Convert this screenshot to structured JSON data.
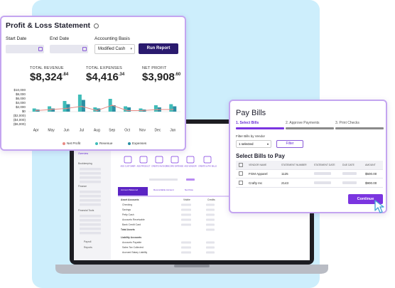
{
  "profit_loss": {
    "title": "Profit & Loss Statement",
    "start_date_label": "Start Date",
    "end_date_label": "End Date",
    "basis_label": "Accounting Basis",
    "basis_value": "Modified Cash",
    "run_button": "Run Report",
    "stats": [
      {
        "label": "TOTAL REVENUE",
        "whole": "$8,324",
        "cents": ".84"
      },
      {
        "label": "TOTAL EXPENSES",
        "whole": "$4,416",
        "cents": ".34"
      },
      {
        "label": "NET PROFIT",
        "whole": "$3,908",
        "cents": ".60"
      }
    ]
  },
  "chart_data": {
    "type": "bar",
    "categories": [
      "Apr",
      "May",
      "Jun",
      "Jul",
      "Aug",
      "Sep",
      "Oct",
      "Nov",
      "Dec",
      "Jan"
    ],
    "series": [
      {
        "name": "Net Profit",
        "type": "line",
        "color": "#e88a84",
        "values": [
          500,
          1000,
          1500,
          2500,
          500,
          3000,
          500,
          500,
          1000,
          1000
        ]
      },
      {
        "name": "Revenue",
        "color": "#3fbcb8",
        "values": [
          1500,
          2500,
          5000,
          8000,
          2000,
          6000,
          2500,
          1500,
          3000,
          3500
        ]
      },
      {
        "name": "Expenses",
        "color": "#2b8fa3",
        "values": [
          1000,
          1500,
          3500,
          5500,
          1500,
          3000,
          2000,
          1000,
          2000,
          2500
        ]
      }
    ],
    "ylim": [
      -6000,
      10000
    ],
    "yticks": [
      {
        "value": 10000,
        "label": "$10,000"
      },
      {
        "value": 8000,
        "label": "$8,000"
      },
      {
        "value": 6000,
        "label": "$6,000"
      },
      {
        "value": 4000,
        "label": "$4,000"
      },
      {
        "value": 2000,
        "label": "$2,000"
      },
      {
        "value": 0,
        "label": "$0"
      },
      {
        "value": -2000,
        "label": "($2,000)"
      },
      {
        "value": -4000,
        "label": "($4,000)"
      },
      {
        "value": -6000,
        "label": "($6,000)"
      }
    ],
    "grid": false
  },
  "pay_bills": {
    "title": "Pay Bills",
    "steps": [
      "1. Select Bills",
      "2. Approve Payments",
      "3. Print Checks"
    ],
    "filter_label": "Filter Bills by Vendor",
    "filter_value": "1 selected",
    "filter_button": "Filter",
    "section_title": "Select Bills to Pay",
    "columns": [
      "VENDOR NAME",
      "STATEMENT NUMBER",
      "STATEMENT DATE",
      "DUE DATE",
      "AMOUNT"
    ],
    "rows": [
      [
        "FGM Apparel",
        "1125",
        "$500.00"
      ],
      [
        "Crafty Inc",
        "2143",
        "$900.00"
      ]
    ],
    "continue_button": "Continue"
  },
  "laptop": {
    "sidebar": [
      "Overview",
      "Bookkeeping",
      "Finance",
      "Financial Tools",
      "Payroll",
      "Reports"
    ],
    "actions": [
      "ADD CUSTOMER",
      "ADD PRODUCT",
      "CREATE INVOICE",
      "RECORD EXPENSE",
      "ADD VENDOR",
      "CREATE & PAY BILLS"
    ],
    "tabs": [
      "Account Balanced",
      "Reconcilable Account",
      "Net Flow"
    ],
    "columns": [
      "Visible",
      "Credits"
    ],
    "assets_title": "Asset Accounts",
    "assets": [
      "Checking",
      "Savings",
      "Petty Cash",
      "Accounts Receivable",
      "Bank Credit Card"
    ],
    "assets_total": "Total Assets",
    "liabilities_title": "Liability Accounts",
    "liabilities": [
      "Accounts Payable",
      "Sales Tax Collected",
      "Accrued Salary Liability"
    ]
  }
}
